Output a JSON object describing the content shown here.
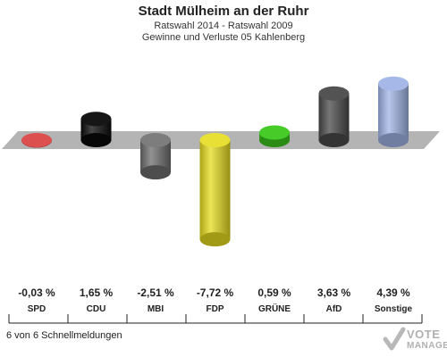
{
  "header": {
    "title": "Stadt Mülheim an der Ruhr",
    "subtitle": "Ratswahl 2014 - Ratswahl 2009",
    "subtitle2": "Gewinne und Verluste 05 Kahlenberg"
  },
  "footer": {
    "note": "6 von 6 Schnellmeldungen"
  },
  "logo": {
    "line1": "VOTE",
    "line2": "MANAGER"
  },
  "chart_data": {
    "type": "bar",
    "title": "Stadt Mülheim an der Ruhr",
    "subtitle": "Ratswahl 2014 - Ratswahl 2009 / Gewinne und Verluste 05 Kahlenberg",
    "categories": [
      "SPD",
      "CDU",
      "MBI",
      "FDP",
      "GRÜNE",
      "AfD",
      "Sonstige"
    ],
    "values": [
      -0.03,
      1.65,
      -2.51,
      -7.72,
      0.59,
      3.63,
      4.39
    ],
    "value_labels": [
      "-0,03 %",
      "1,65 %",
      "-2,51 %",
      "-7,72 %",
      "0,59 %",
      "3,63 %",
      "4,39 %"
    ],
    "colors": [
      "#d93c3c",
      "#0a0a0a",
      "#6e6e6e",
      "#e6dc1e",
      "#3cc81e",
      "#4a4a4a",
      "#a0b4e6"
    ],
    "unit": "%",
    "ylim": [
      -7.72,
      4.39
    ],
    "grid": false
  }
}
